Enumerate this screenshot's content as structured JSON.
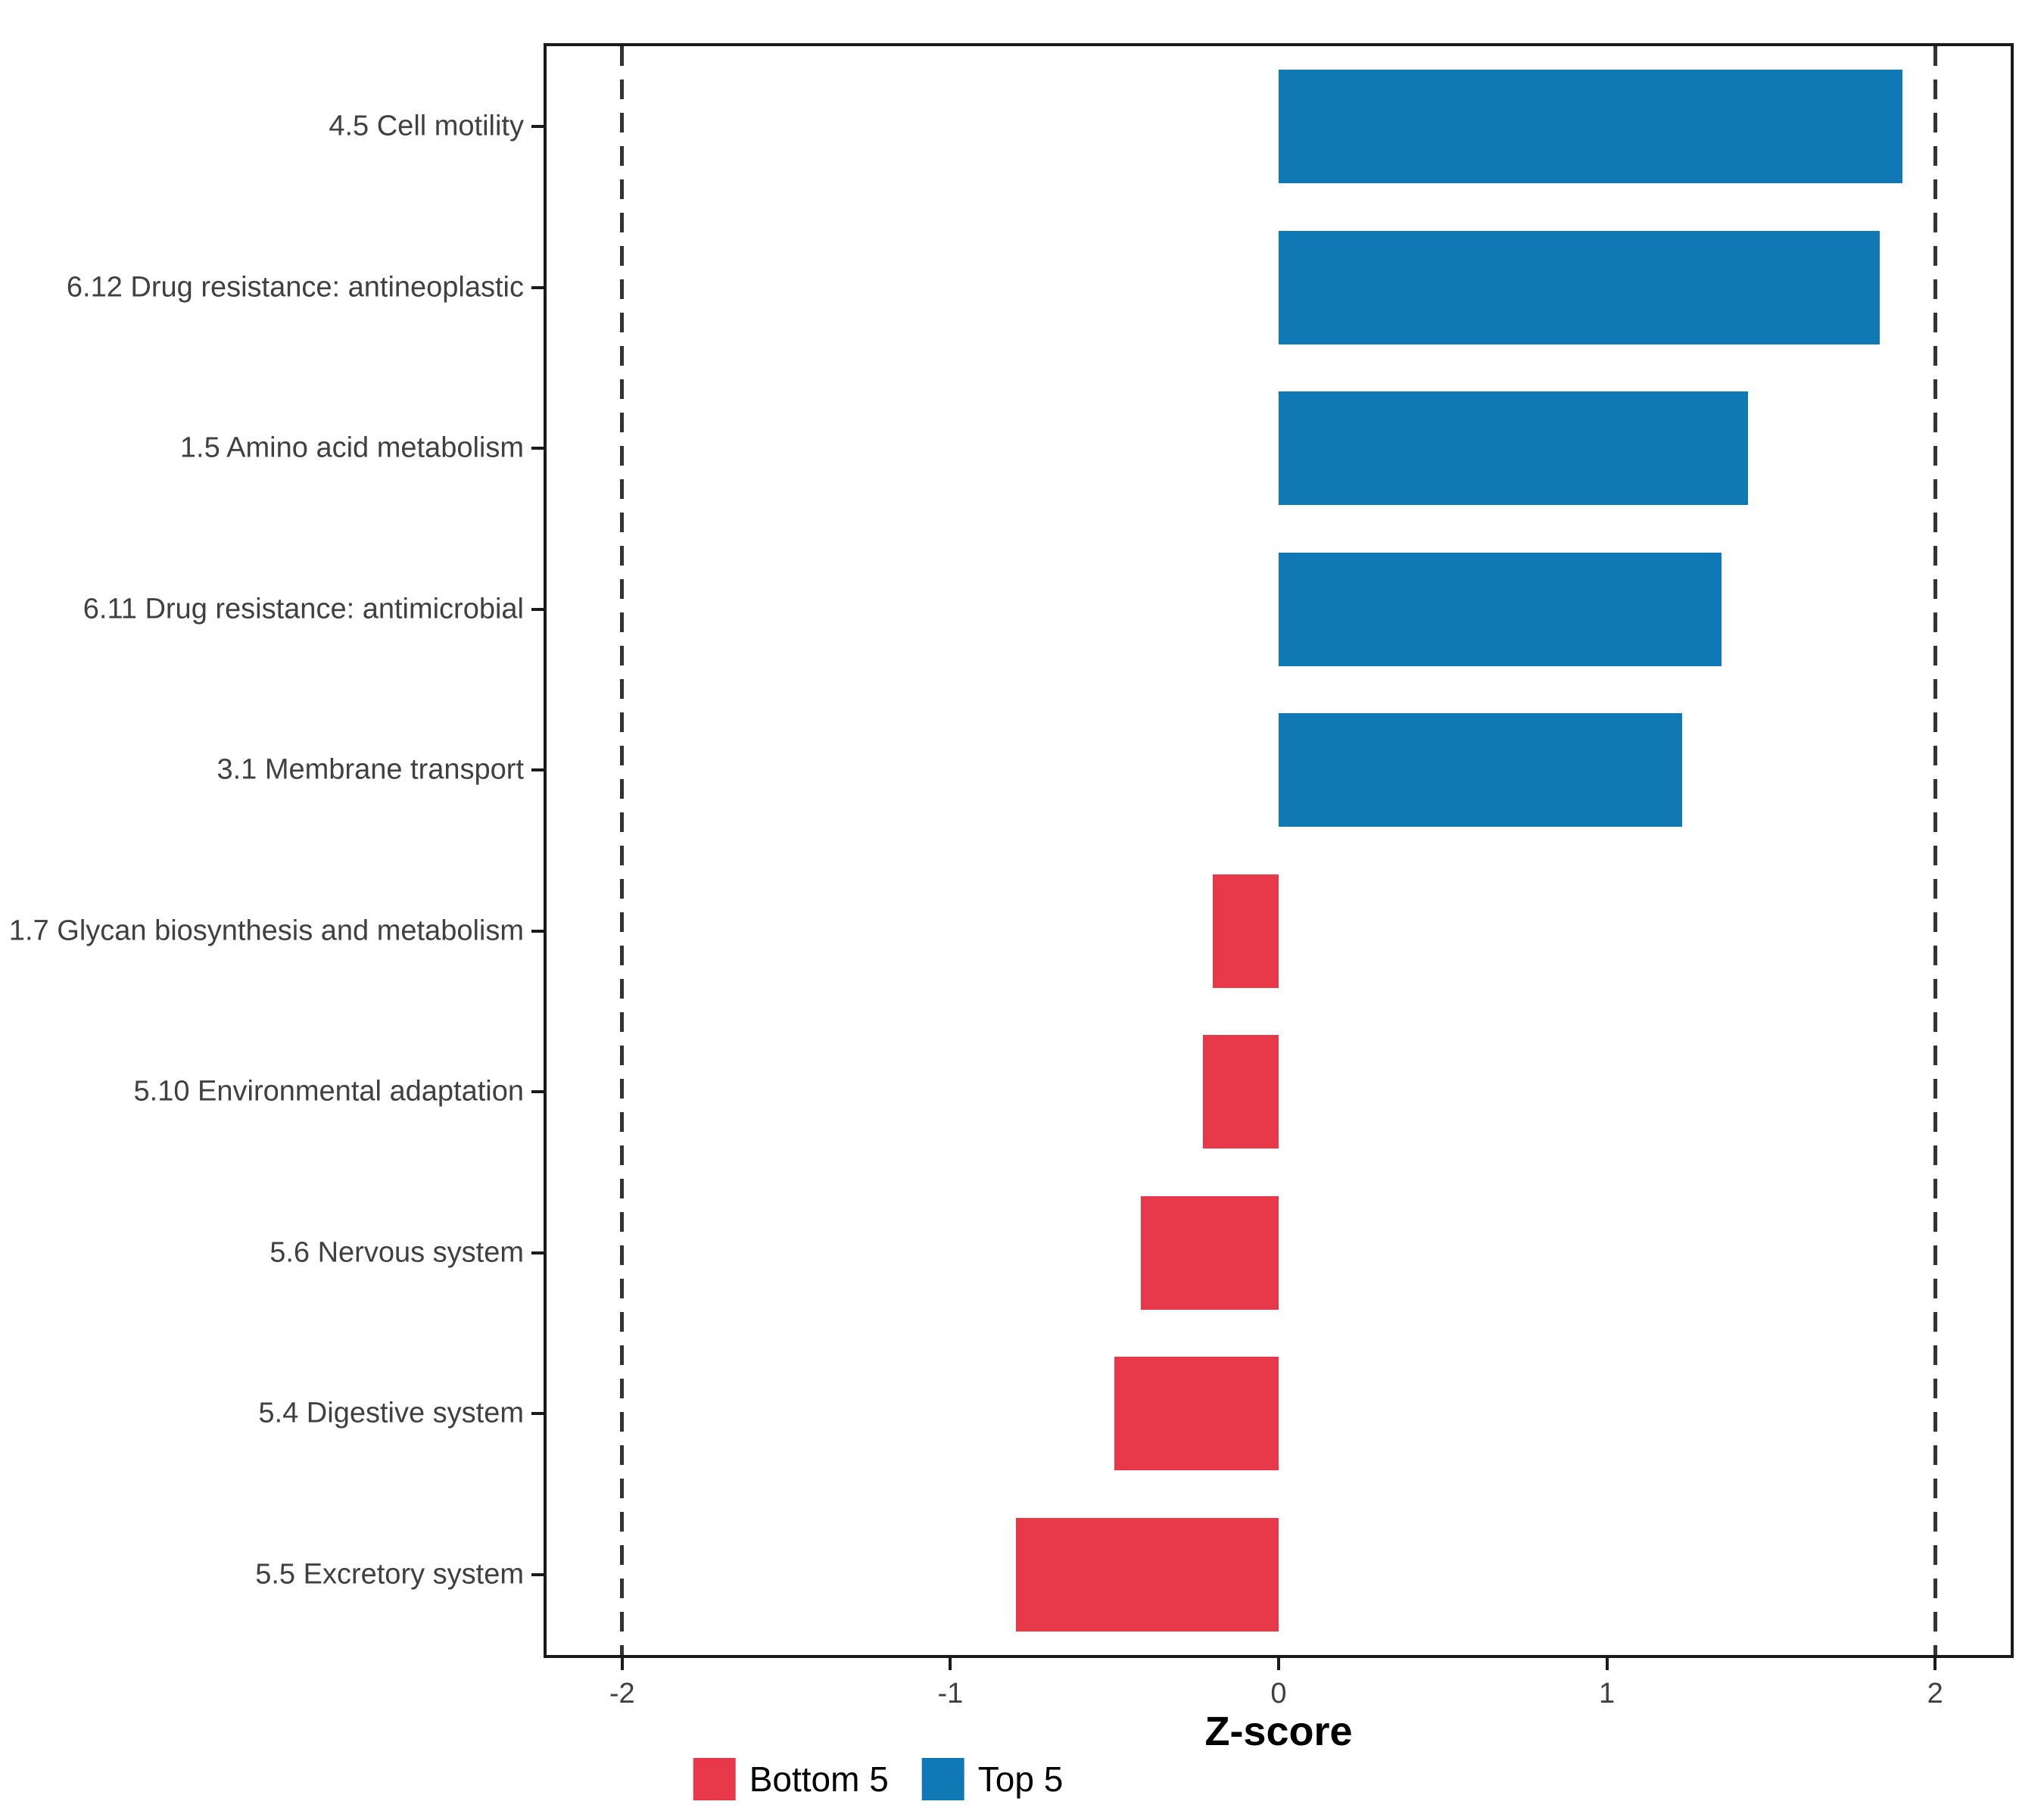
{
  "chart_data": {
    "type": "bar",
    "orientation": "horizontal",
    "title": "",
    "xlabel": "Z-score",
    "categories": [
      "4.5 Cell motility",
      "6.12 Drug resistance: antineoplastic",
      "1.5 Amino acid metabolism",
      "6.11 Drug resistance: antimicrobial",
      "3.1 Membrane transport",
      "1.7 Glycan biosynthesis and metabolism",
      "5.10 Environmental adaptation",
      "5.6 Nervous system",
      "5.4 Digestive system",
      "5.5 Excretory system"
    ],
    "values": [
      1.9,
      1.83,
      1.43,
      1.35,
      1.23,
      -0.2,
      -0.23,
      -0.42,
      -0.5,
      -0.8
    ],
    "series_colors": {
      "positive": "#1178B6",
      "negative": "#E8394B"
    },
    "x_ticks": [
      -2,
      -1,
      0,
      1,
      2
    ],
    "xlim": [
      -2.23,
      2.23
    ],
    "reference_lines": [
      -2,
      2
    ],
    "reference_line_style": "dashed",
    "grid": "off",
    "legend_position": "bottom",
    "legend": [
      {
        "label": "Bottom 5",
        "color": "#E8394B"
      },
      {
        "label": "Top 5",
        "color": "#1178B6"
      }
    ]
  }
}
